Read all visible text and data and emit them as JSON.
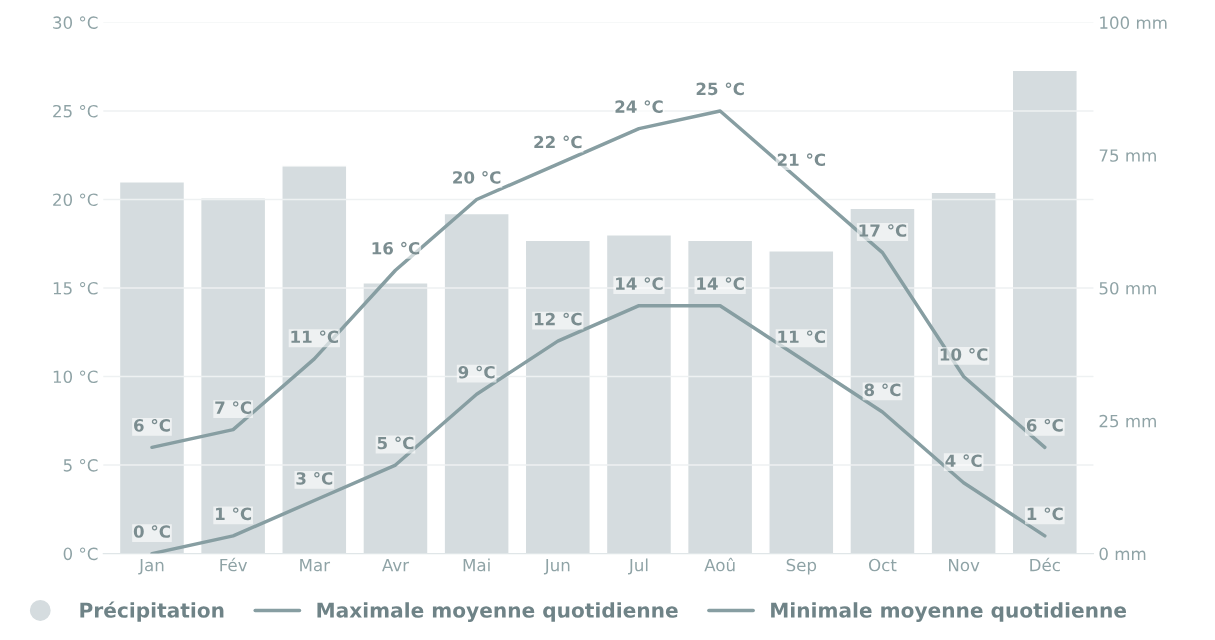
{
  "chart_data": {
    "type": "bar",
    "categories": [
      "Jan",
      "Fév",
      "Mar",
      "Avr",
      "Mai",
      "Jun",
      "Jul",
      "Aoû",
      "Sep",
      "Oct",
      "Nov",
      "Déc"
    ],
    "series": [
      {
        "name": "Précipitation",
        "type": "bar",
        "axis": "y2",
        "color": "#d5dcdf",
        "values": [
          70,
          67,
          73,
          51,
          64,
          59,
          60,
          59,
          57,
          65,
          68,
          91
        ]
      },
      {
        "name": "Maximale moyenne quotidienne",
        "type": "line",
        "color": "#879ea2",
        "values": [
          6,
          7,
          11,
          16,
          20,
          22,
          24,
          25,
          21,
          17,
          10,
          6
        ],
        "value_labels": [
          "6 °C",
          "7 °C",
          "11 °C",
          "16 °C",
          "20 °C",
          "22 °C",
          "24 °C",
          "25 °C",
          "21 °C",
          "17 °C",
          "10 °C",
          "6 °C"
        ]
      },
      {
        "name": "Minimale moyenne quotidienne",
        "type": "line",
        "color": "#879ea2",
        "values": [
          0,
          1,
          3,
          5,
          9,
          12,
          14,
          14,
          11,
          8,
          4,
          1
        ],
        "value_labels": [
          "0 °C",
          "1 °C",
          "3 °C",
          "5 °C",
          "9 °C",
          "12 °C",
          "14 °C",
          "14 °C",
          "11 °C",
          "8 °C",
          "4 °C",
          "1 °C"
        ]
      }
    ],
    "ylim": [
      0,
      30
    ],
    "yticks": [
      {
        "value": 0,
        "label": "0 °C"
      },
      {
        "value": 5,
        "label": "5 °C"
      },
      {
        "value": 10,
        "label": "10 °C"
      },
      {
        "value": 15,
        "label": "15 °C"
      },
      {
        "value": 20,
        "label": "20 °C"
      },
      {
        "value": 25,
        "label": "25 °C"
      },
      {
        "value": 30,
        "label": "30 °C"
      }
    ],
    "y2lim": [
      0,
      100
    ],
    "y2ticks": [
      {
        "value": 0,
        "label": "0 mm"
      },
      {
        "value": 25,
        "label": "25 mm"
      },
      {
        "value": 50,
        "label": "50 mm"
      },
      {
        "value": 75,
        "label": "75 mm"
      },
      {
        "value": 100,
        "label": "100 mm"
      }
    ],
    "grid": "y",
    "legend": "bottom left"
  }
}
